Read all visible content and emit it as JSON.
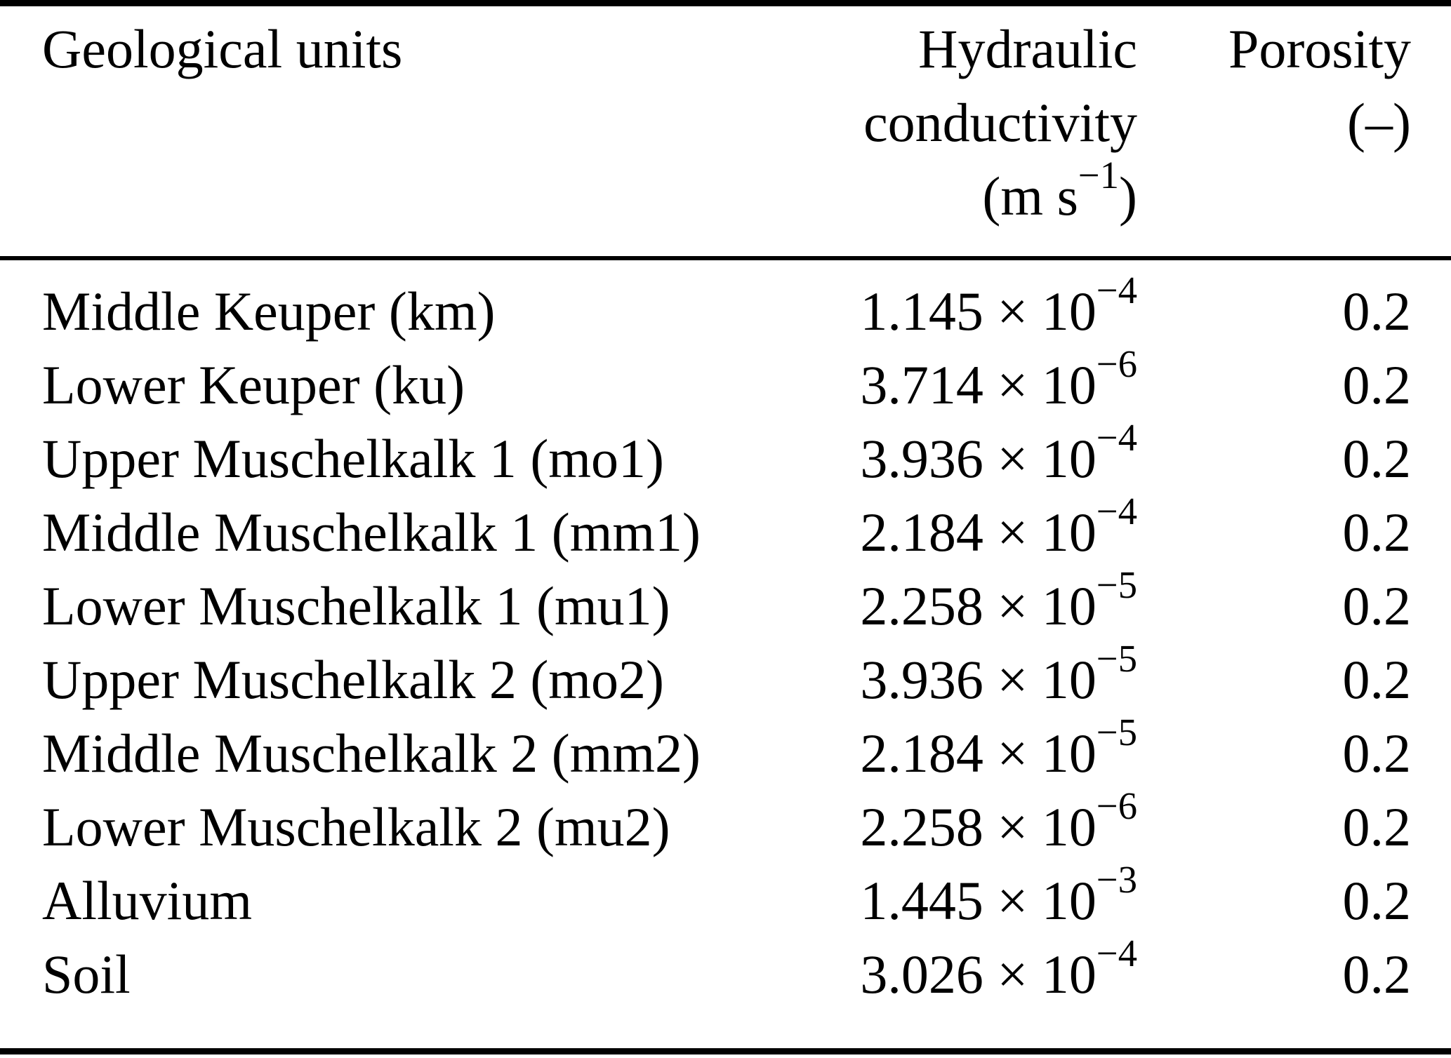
{
  "table": {
    "header": {
      "units": "Geological units",
      "k_line1": "Hydraulic",
      "k_line2": "conductivity",
      "k_unit_open": "(m s",
      "k_unit_sup": "−1",
      "k_unit_close": ")",
      "p_line1": "Porosity",
      "p_line2": "(–)"
    },
    "rows": [
      {
        "unit": "Middle Keuper (km)",
        "k": "1.145 × 10",
        "k_exp": "−4",
        "porosity": "0.2"
      },
      {
        "unit": "Lower Keuper (ku)",
        "k": "3.714 × 10",
        "k_exp": "−6",
        "porosity": "0.2"
      },
      {
        "unit": "Upper Muschelkalk 1 (mo1)",
        "k": "3.936 × 10",
        "k_exp": "−4",
        "porosity": "0.2"
      },
      {
        "unit": "Middle Muschelkalk 1 (mm1)",
        "k": "2.184 × 10",
        "k_exp": "−4",
        "porosity": "0.2"
      },
      {
        "unit": "Lower Muschelkalk 1 (mu1)",
        "k": "2.258 × 10",
        "k_exp": "−5",
        "porosity": "0.2"
      },
      {
        "unit": "Upper Muschelkalk 2 (mo2)",
        "k": "3.936 × 10",
        "k_exp": "−5",
        "porosity": "0.2"
      },
      {
        "unit": "Middle Muschelkalk 2 (mm2)",
        "k": "2.184 × 10",
        "k_exp": "−5",
        "porosity": "0.2"
      },
      {
        "unit": "Lower Muschelkalk 2 (mu2)",
        "k": "2.258 × 10",
        "k_exp": "−6",
        "porosity": "0.2"
      },
      {
        "unit": "Alluvium",
        "k": "1.445 × 10",
        "k_exp": "−3",
        "porosity": "0.2"
      },
      {
        "unit": "Soil",
        "k": "3.026 × 10",
        "k_exp": "−4",
        "porosity": "0.2"
      }
    ],
    "colors": {
      "background": "#ffffff",
      "text": "#000000",
      "rule": "#000000"
    }
  }
}
